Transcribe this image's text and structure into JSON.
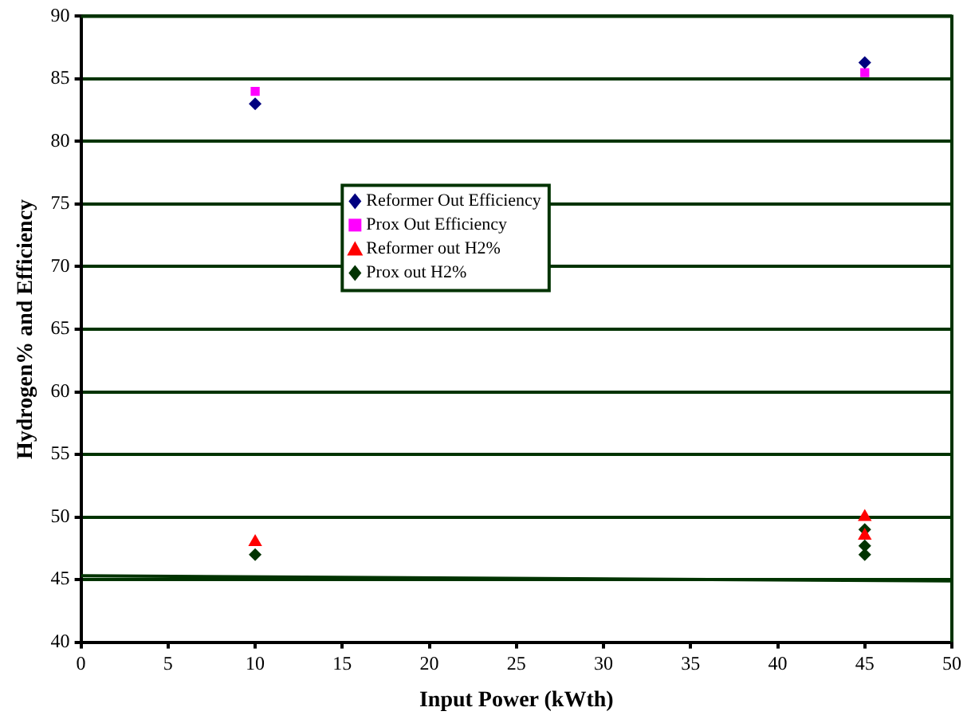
{
  "chart_data": {
    "type": "scatter",
    "xlabel": "Input Power (kWth)",
    "ylabel": "Hydrogen% and Efficiency",
    "xlim": [
      0,
      50
    ],
    "xticks": [
      0,
      5,
      10,
      15,
      20,
      25,
      30,
      35,
      40,
      45,
      50
    ],
    "ylim": [
      40,
      90
    ],
    "yticks": [
      40,
      45,
      50,
      55,
      60,
      65,
      70,
      75,
      80,
      85,
      90
    ],
    "grid": "y",
    "legend": "left",
    "series": [
      {
        "name": "Reformer Out Efficiency",
        "color": "#000080",
        "marker": "diamond",
        "x": [
          10,
          45
        ],
        "values": [
          83,
          86.3
        ]
      },
      {
        "name": "Prox Out Efficiency",
        "color": "#ff00ff",
        "marker": "square",
        "x": [
          10,
          45
        ],
        "values": [
          84,
          85.5
        ]
      },
      {
        "name": "Reformer out H2%",
        "color": "#ff0000",
        "marker": "triangle",
        "x": [
          10,
          45,
          45
        ],
        "values": [
          48,
          50,
          48.5
        ]
      },
      {
        "name": "Prox out H2%",
        "color": "#003300",
        "marker": "diamond",
        "x": [
          10,
          45,
          45,
          45
        ],
        "values": [
          47,
          49,
          47.7,
          47
        ]
      },
      {
        "type": "line",
        "color": "#003300",
        "marker": "none",
        "x": [
          0,
          50
        ],
        "values": [
          45.3,
          44.9
        ]
      }
    ]
  }
}
